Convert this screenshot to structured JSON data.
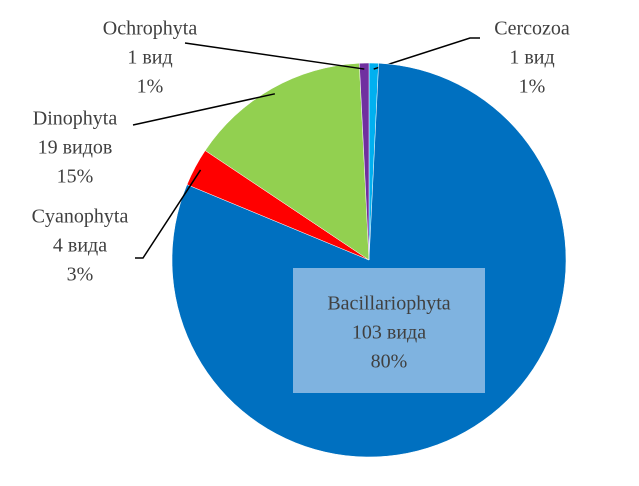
{
  "chart_data": {
    "type": "pie",
    "categories": [
      "Cercozoa",
      "Bacillariophyta",
      "Cyanophyta",
      "Dinophyta",
      "Ochrophyta"
    ],
    "values": [
      1,
      103,
      4,
      19,
      1
    ],
    "value_labels": [
      "1 вид",
      "103 вида",
      "4 вида",
      "19 видов",
      "1 вид"
    ],
    "percent_labels": [
      "1%",
      "80%",
      "3%",
      "15%",
      "1%"
    ],
    "colors": [
      "#00b0f0",
      "#0070c0",
      "#ff0000",
      "#92d050",
      "#7030a0"
    ]
  }
}
